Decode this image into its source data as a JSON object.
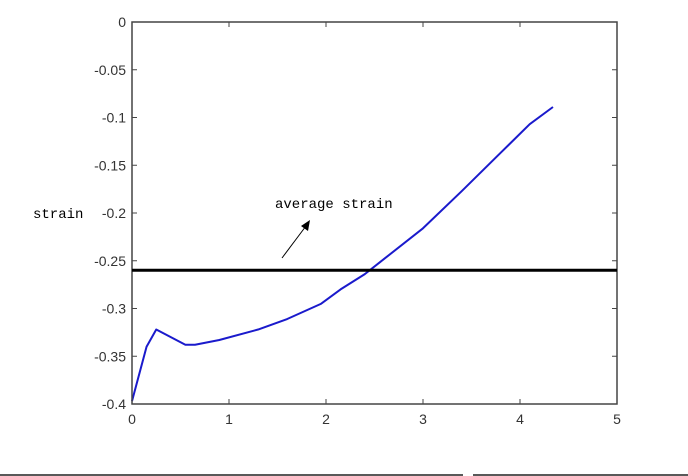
{
  "chart_data": {
    "type": "line",
    "title": "",
    "xlabel": "",
    "ylabel": "strain",
    "xlim": [
      0,
      5
    ],
    "ylim": [
      -0.4,
      0
    ],
    "x_ticks": [
      "0",
      "1",
      "2",
      "3",
      "4",
      "5"
    ],
    "y_ticks": [
      "0",
      "-0.05",
      "-0.1",
      "-0.15",
      "-0.2",
      "-0.25",
      "-0.3",
      "-0.35",
      "-0.4"
    ],
    "grid": false,
    "series": [
      {
        "color": "#1a1acc",
        "x": [
          0,
          0.15,
          0.25,
          0.55,
          0.65,
          0.9,
          1.3,
          1.6,
          1.95,
          2.15,
          2.4,
          2.6,
          3.0,
          3.4,
          3.8,
          4.1,
          4.34
        ],
        "y": [
          -0.397,
          -0.34,
          -0.322,
          -0.338,
          -0.338,
          -0.333,
          -0.322,
          -0.311,
          -0.295,
          -0.28,
          -0.264,
          -0.248,
          -0.216,
          -0.177,
          -0.137,
          -0.107,
          -0.089
        ]
      }
    ],
    "reference_line": {
      "y": -0.26,
      "color": "#000000",
      "label": "average strain"
    }
  }
}
